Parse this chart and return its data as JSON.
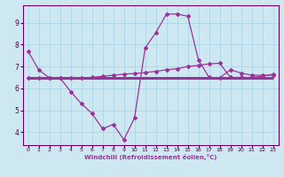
{
  "xlabel": "Windchill (Refroidissement éolien,°C)",
  "bg_color": "#cde8f0",
  "line_color": "#993399",
  "grid_color": "#b0d8e8",
  "ylim": [
    3.4,
    9.8
  ],
  "xlim": [
    -0.5,
    23.5
  ],
  "yticks": [
    4,
    5,
    6,
    7,
    8,
    9
  ],
  "xticks": [
    0,
    1,
    2,
    3,
    4,
    5,
    6,
    7,
    8,
    9,
    10,
    11,
    12,
    13,
    14,
    15,
    16,
    17,
    18,
    19,
    20,
    21,
    22,
    23
  ],
  "line1_x": [
    0,
    1,
    2,
    3,
    4,
    5,
    6,
    7,
    8,
    9,
    10,
    11,
    12,
    13,
    14,
    15,
    16,
    17,
    18,
    19,
    20,
    21,
    22,
    23
  ],
  "line1_y": [
    7.7,
    6.85,
    6.48,
    6.48,
    5.85,
    5.3,
    4.85,
    4.15,
    4.35,
    3.65,
    4.65,
    7.85,
    8.55,
    9.4,
    9.4,
    9.3,
    7.3,
    6.5,
    6.48,
    6.85,
    6.7,
    6.6,
    6.6,
    6.6
  ],
  "line2_x": [
    0,
    1,
    2,
    3,
    4,
    5,
    6,
    7,
    8,
    9,
    10,
    11,
    12,
    13,
    14,
    15,
    16,
    17,
    18,
    19,
    20,
    21,
    22,
    23
  ],
  "line2_y": [
    6.48,
    6.48,
    6.48,
    6.48,
    6.48,
    6.48,
    6.48,
    6.48,
    6.48,
    6.48,
    6.48,
    6.48,
    6.48,
    6.48,
    6.48,
    6.48,
    6.48,
    6.48,
    6.48,
    6.48,
    6.48,
    6.48,
    6.48,
    6.48
  ],
  "line3_x": [
    0,
    1,
    2,
    3,
    4,
    5,
    6,
    7,
    8,
    9,
    10,
    11,
    12,
    13,
    14,
    15,
    16,
    17,
    18,
    19,
    20,
    21,
    22,
    23
  ],
  "line3_y": [
    6.48,
    6.48,
    6.48,
    6.48,
    6.48,
    6.48,
    6.5,
    6.55,
    6.6,
    6.65,
    6.68,
    6.72,
    6.78,
    6.85,
    6.9,
    7.0,
    7.05,
    7.12,
    7.15,
    6.5,
    6.5,
    6.5,
    6.55,
    6.65
  ]
}
